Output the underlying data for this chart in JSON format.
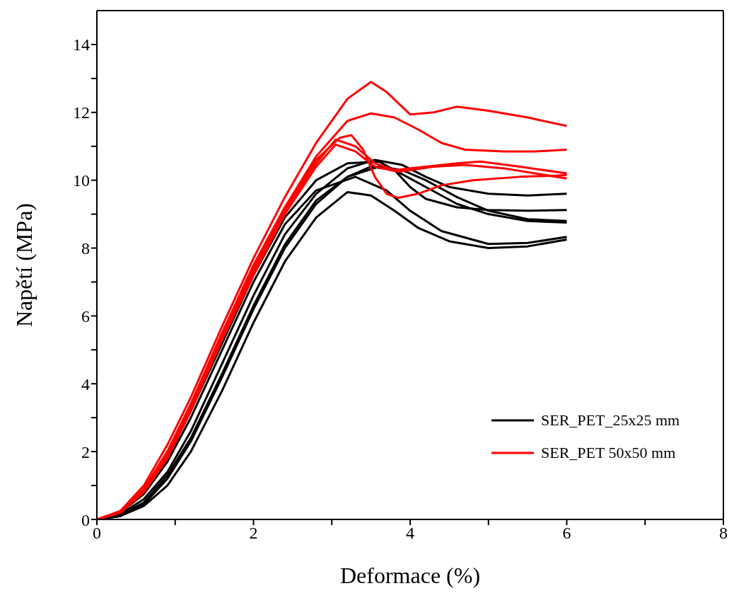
{
  "chart_data": {
    "type": "line",
    "xlabel": "Deformace (%)",
    "ylabel": "Napětí (MPa)",
    "xlim": [
      0,
      8
    ],
    "ylim": [
      0,
      15
    ],
    "xticks": [
      0,
      {
        "value": 1,
        "label": null
      },
      2,
      {
        "value": 3,
        "label": null
      },
      4,
      {
        "value": 5,
        "label": null
      },
      6,
      {
        "value": 7,
        "label": null
      },
      8
    ],
    "yticks": [
      0,
      {
        "value": 1,
        "label": null
      },
      2,
      {
        "value": 3,
        "label": null
      },
      4,
      {
        "value": 5,
        "label": null
      },
      6,
      {
        "value": 7,
        "label": null
      },
      8,
      {
        "value": 9,
        "label": null
      },
      10,
      {
        "value": 11,
        "label": null
      },
      12,
      {
        "value": 13,
        "label": null
      },
      14
    ],
    "legend": "bottom right",
    "marker": "none",
    "line_style": "solid",
    "series": [
      {
        "name": "SER_PET_25x25 mm",
        "color": "#000000",
        "x": [
          0,
          0.3,
          0.6,
          0.9,
          1.2,
          1.6,
          2.0,
          2.4,
          2.8,
          3.2,
          3.6,
          3.8,
          4.0,
          4.2,
          4.6,
          5.0,
          5.5,
          6.0
        ],
        "values": [
          0,
          0.2,
          0.8,
          1.8,
          3.2,
          5.2,
          7.2,
          8.9,
          10.0,
          10.5,
          10.55,
          10.3,
          9.8,
          9.45,
          9.2,
          9.12,
          9.1,
          9.12
        ]
      },
      {
        "color": "#000000",
        "x": [
          0,
          0.3,
          0.6,
          0.9,
          1.2,
          1.6,
          2.0,
          2.4,
          2.8,
          3.2,
          3.55,
          3.9,
          4.2,
          4.5,
          5.0,
          5.5,
          6.0
        ],
        "values": [
          0,
          0.15,
          0.6,
          1.4,
          2.6,
          4.6,
          6.6,
          8.4,
          9.6,
          10.35,
          10.6,
          10.45,
          10.1,
          9.8,
          9.6,
          9.55,
          9.6
        ]
      },
      {
        "color": "#000000",
        "x": [
          0,
          0.3,
          0.6,
          0.9,
          1.2,
          1.6,
          2.0,
          2.4,
          2.8,
          3.2,
          3.6,
          3.9,
          4.2,
          4.6,
          5.0,
          5.5,
          6.0
        ],
        "values": [
          0,
          0.12,
          0.5,
          1.3,
          2.4,
          4.3,
          6.3,
          8.1,
          9.4,
          10.1,
          10.4,
          10.3,
          10.0,
          9.5,
          9.1,
          8.85,
          8.8
        ]
      },
      {
        "color": "#000000",
        "x": [
          0,
          0.3,
          0.6,
          0.9,
          1.2,
          1.6,
          2.0,
          2.4,
          2.8,
          3.2,
          3.5,
          3.8,
          4.2,
          4.6,
          5.0,
          5.5,
          6.0
        ],
        "values": [
          0,
          0.1,
          0.45,
          1.2,
          2.3,
          4.2,
          6.2,
          8.0,
          9.3,
          10.1,
          10.4,
          10.3,
          9.8,
          9.3,
          9.0,
          8.8,
          8.75
        ]
      },
      {
        "color": "#000000",
        "x": [
          0,
          0.3,
          0.6,
          0.9,
          1.2,
          1.6,
          2.0,
          2.4,
          2.8,
          3.2,
          3.5,
          3.8,
          4.1,
          4.5,
          5.0,
          5.5,
          6.0
        ],
        "values": [
          0,
          0.1,
          0.4,
          1.0,
          2.0,
          3.8,
          5.8,
          7.6,
          8.9,
          9.65,
          9.55,
          9.1,
          8.6,
          8.2,
          8.0,
          8.05,
          8.25
        ]
      },
      {
        "color": "#000000",
        "x": [
          0,
          0.3,
          0.6,
          0.9,
          1.2,
          1.6,
          2.0,
          2.4,
          2.8,
          3.3,
          3.7,
          4.0,
          4.4,
          5.0,
          5.5,
          6.0
        ],
        "values": [
          0,
          0.2,
          0.75,
          1.7,
          3.0,
          5.0,
          7.0,
          8.7,
          9.7,
          10.1,
          9.7,
          9.1,
          8.5,
          8.12,
          8.15,
          8.33
        ]
      },
      {
        "name": "SER_PET 50x50 mm",
        "color": "#ff0000",
        "x": [
          0,
          0.3,
          0.6,
          0.9,
          1.2,
          1.6,
          2.0,
          2.4,
          2.8,
          3.2,
          3.5,
          3.7,
          4.0,
          4.3,
          4.6,
          5.0,
          5.5,
          6.0
        ],
        "values": [
          0,
          0.25,
          1.0,
          2.2,
          3.6,
          5.7,
          7.7,
          9.5,
          11.1,
          12.4,
          12.9,
          12.6,
          11.94,
          12.0,
          12.17,
          12.05,
          11.85,
          11.6
        ]
      },
      {
        "color": "#ff0000",
        "x": [
          0,
          0.3,
          0.6,
          0.9,
          1.2,
          1.6,
          2.0,
          2.4,
          2.8,
          3.2,
          3.5,
          3.8,
          4.1,
          4.4,
          4.7,
          5.2,
          5.6,
          6.0
        ],
        "values": [
          0,
          0.22,
          0.9,
          2.0,
          3.4,
          5.5,
          7.5,
          9.2,
          10.7,
          11.75,
          11.97,
          11.85,
          11.5,
          11.1,
          10.9,
          10.85,
          10.85,
          10.9
        ]
      },
      {
        "color": "#ff0000",
        "x": [
          0,
          0.3,
          0.6,
          0.9,
          1.2,
          1.6,
          2.0,
          2.4,
          2.8,
          3.1,
          3.25,
          3.4,
          3.55,
          3.7,
          3.85,
          4.1,
          4.4,
          4.8,
          5.4,
          6.0
        ],
        "values": [
          0,
          0.22,
          0.9,
          2.0,
          3.4,
          5.5,
          7.4,
          9.2,
          10.6,
          11.25,
          11.33,
          10.9,
          10.1,
          9.6,
          9.48,
          9.6,
          9.85,
          10.0,
          10.1,
          10.15
        ]
      },
      {
        "color": "#ff0000",
        "x": [
          0,
          0.3,
          0.6,
          0.9,
          1.2,
          1.6,
          2.0,
          2.4,
          2.8,
          3.05,
          3.3,
          3.55,
          3.8,
          4.2,
          4.6,
          4.9,
          5.4,
          6.0
        ],
        "values": [
          0,
          0.2,
          0.85,
          1.9,
          3.3,
          5.4,
          7.3,
          9.1,
          10.5,
          11.2,
          11.0,
          10.5,
          10.3,
          10.4,
          10.5,
          10.55,
          10.4,
          10.2
        ]
      },
      {
        "color": "#ff0000",
        "x": [
          0,
          0.3,
          0.6,
          0.9,
          1.2,
          1.6,
          2.0,
          2.4,
          2.8,
          3.05,
          3.3,
          3.55,
          3.85,
          4.3,
          4.7,
          5.2,
          6.0
        ],
        "values": [
          0,
          0.2,
          0.8,
          1.8,
          3.2,
          5.3,
          7.2,
          9.0,
          10.4,
          11.05,
          10.85,
          10.4,
          10.25,
          10.4,
          10.45,
          10.35,
          10.05
        ]
      }
    ]
  }
}
